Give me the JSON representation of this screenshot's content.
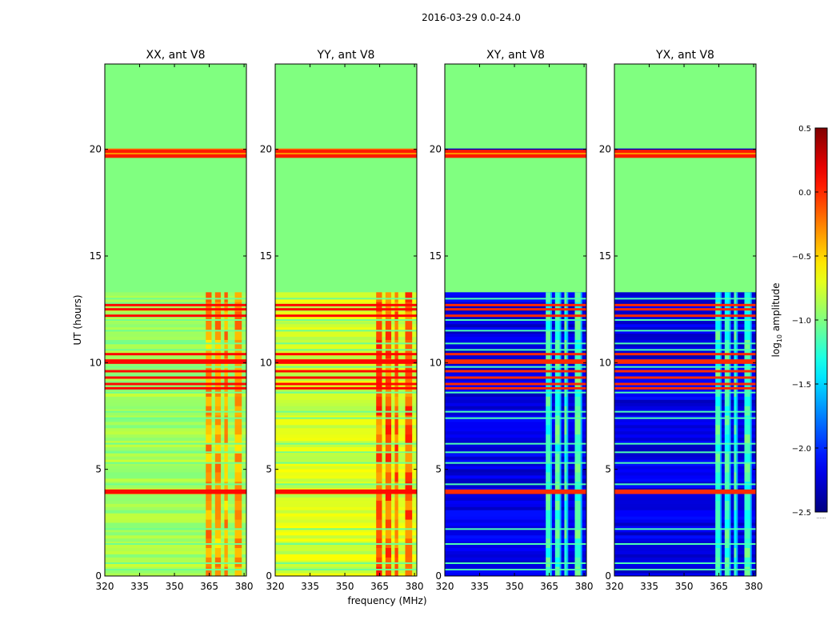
{
  "figure": {
    "suptitle": "2016-03-29 0.0-24.0",
    "xlabel": "frequency (MHz)",
    "ylabel": "UT (hours)",
    "colorbar_label_prefix": "log",
    "colorbar_label_sub": "10",
    "colorbar_label_suffix": " amplitude",
    "colorbar_extra": "......",
    "colors": {
      "background_fill": "#7fff7f",
      "frame": "#000000"
    }
  },
  "chart_data": {
    "type": "heatmap",
    "colormap": "jet",
    "x_range": [
      320,
      381
    ],
    "y_range": [
      0,
      24
    ],
    "xticks": [
      320,
      335,
      350,
      365,
      380
    ],
    "xtick_labels": [
      "320",
      "335",
      "350",
      "365",
      "380"
    ],
    "yticks": [
      0,
      5,
      10,
      15,
      20
    ],
    "ytick_labels": [
      "0",
      "5",
      "10",
      "15",
      "20"
    ],
    "colorbar": {
      "range": [
        -2.5,
        0.5
      ],
      "ticks": [
        0.5,
        0.0,
        -0.5,
        -1.0,
        -1.5,
        -2.0,
        -2.5
      ],
      "tick_labels": [
        "0.5",
        "0.0",
        "−0.5",
        "−1.0",
        "−1.5",
        "−2.0",
        "−2.5"
      ]
    },
    "missing_data_value": -1.0,
    "data_hours": [
      0,
      13.3
    ],
    "flagged_band_hours": [
      19.6,
      20.0
    ],
    "rfi_freq_bands_mhz": [
      [
        363.5,
        366.0
      ],
      [
        367.5,
        370.0
      ],
      [
        371.5,
        373.0
      ],
      [
        376.0,
        379.0
      ]
    ],
    "panels": [
      {
        "title": "XX, ant V8",
        "baseline": -0.9,
        "band_level": -0.35,
        "strong_rows_level": 0.1,
        "kind": "auto"
      },
      {
        "title": "YY, ant V8",
        "baseline": -0.75,
        "band_level": -0.15,
        "strong_rows_level": 0.1,
        "kind": "auto"
      },
      {
        "title": "XY, ant V8",
        "baseline": -2.2,
        "band_level": -1.1,
        "strong_rows_level": 0.0,
        "kind": "cross"
      },
      {
        "title": "YX, ant V8",
        "baseline": -2.2,
        "band_level": -1.1,
        "strong_rows_level": 0.0,
        "kind": "cross"
      }
    ]
  }
}
